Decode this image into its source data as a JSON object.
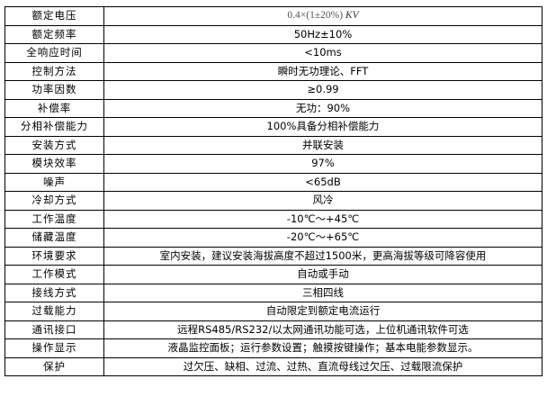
{
  "rows": [
    {
      "label": "额定电压",
      "value": "0.4×(1±20%)",
      "unit": "KV"
    },
    {
      "label": "额定频率",
      "value": "50Hz±10%"
    },
    {
      "label": "全响应时间",
      "value": "<10ms"
    },
    {
      "label": "控制方法",
      "value": "瞬时无功理论、FFT"
    },
    {
      "label": "功率因数",
      "value": "≥0.99"
    },
    {
      "label": "补偿率",
      "value": "无功：90%"
    },
    {
      "label": "分相补偿能力",
      "value": "100%具备分相补偿能力"
    },
    {
      "label": "安装方式",
      "value": "并联安装"
    },
    {
      "label": "模块效率",
      "value": "97%"
    },
    {
      "label": "噪声",
      "value": "<65dB"
    },
    {
      "label": "冷却方式",
      "value": "风冷"
    },
    {
      "label": "工作温度",
      "value": "-10℃～+45℃"
    },
    {
      "label": "储藏温度",
      "value": "-20℃～+65℃"
    },
    {
      "label": "环境要求",
      "value": "室内安装，建议安装海拔高度不超过1500米，更高海拔等级可降容使用"
    },
    {
      "label": "工作模式",
      "value": "自动或手动"
    },
    {
      "label": "接线方式",
      "value": "三相四线"
    },
    {
      "label": "过载能力",
      "value": "自动限定到额定电流运行"
    },
    {
      "label": "通讯接口",
      "value": "远程RS485/RS232/以太网通讯功能可选，上位机通讯软件可选"
    },
    {
      "label": "操作显示",
      "value": "液晶监控面板；运行参数设置；触摸按键操作；基本电能参数显示。"
    },
    {
      "label": "保护",
      "value": "过欠压、缺相、过流、过热、直流母线过欠压、过载限流保护"
    }
  ]
}
